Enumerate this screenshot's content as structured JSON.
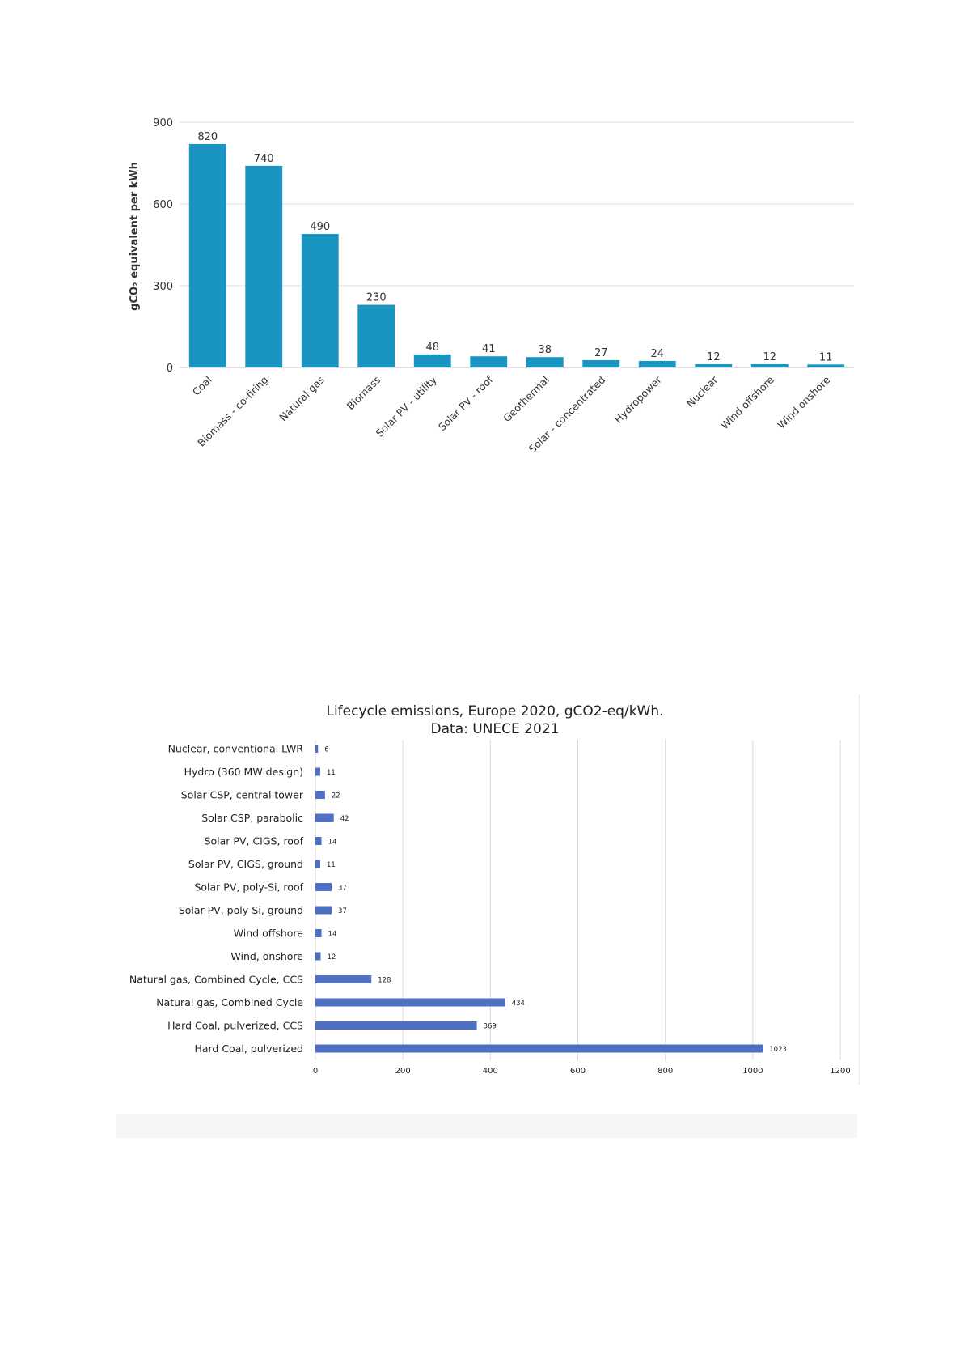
{
  "chart_data": [
    {
      "type": "bar",
      "orientation": "vertical",
      "title": "",
      "xlabel": "",
      "ylabel": "gCO₂ equivalent per kWh",
      "ylim": [
        0,
        900
      ],
      "yticks": [
        0,
        300,
        600,
        900
      ],
      "grid": true,
      "bar_color": "#1a94c1",
      "categories": [
        "Coal",
        "Biomass - co-firing",
        "Natural gas",
        "Biomass",
        "Solar PV - utility",
        "Solar PV - roof",
        "Geothermal",
        "Solar - concentrated",
        "Hydropower",
        "Nuclear",
        "Wind offshore",
        "Wind onshore"
      ],
      "values": [
        820,
        740,
        490,
        230,
        48,
        41,
        38,
        27,
        24,
        12,
        12,
        11
      ]
    },
    {
      "type": "bar",
      "orientation": "horizontal",
      "title": "Lifecycle emissions, Europe 2020, gCO2-eq/kWh.",
      "subtitle": "Data: UNECE 2021",
      "xlim": [
        0,
        1200
      ],
      "xticks": [
        0,
        200,
        400,
        600,
        800,
        1000,
        1200
      ],
      "grid": true,
      "bar_color": "#4f6fc4",
      "categories": [
        "Nuclear, conventional LWR",
        "Hydro (360 MW design)",
        "Solar CSP, central tower",
        "Solar CSP, parabolic",
        "Solar PV, CIGS, roof",
        "Solar PV, CIGS, ground",
        "Solar PV, poly-Si, roof",
        "Solar PV, poly-Si, ground",
        "Wind offshore",
        "Wind, onshore",
        "Natural gas, Combined Cycle, CCS",
        "Natural gas, Combined Cycle",
        "Hard Coal, pulverized, CCS",
        "Hard Coal, pulverized"
      ],
      "values": [
        6,
        11,
        22,
        42,
        14,
        11,
        37,
        37,
        14,
        12,
        128,
        434,
        369,
        1023
      ]
    }
  ]
}
